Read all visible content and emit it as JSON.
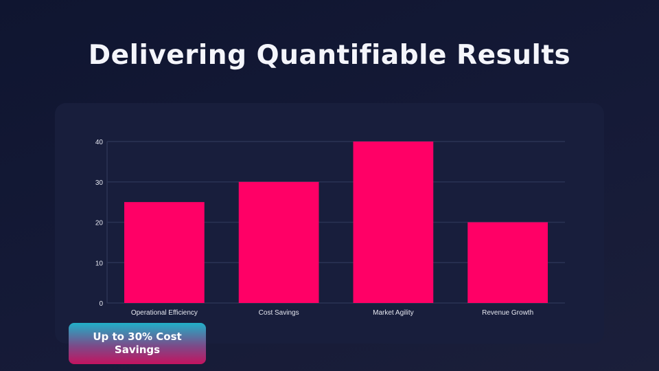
{
  "title": "Delivering Quantifiable Results",
  "badge": {
    "label": "Up to 30% Cost Savings"
  },
  "colors": {
    "bar": "#ff0066",
    "grid": "#2a3354",
    "tick_text": "#e6e8f0"
  },
  "chart_data": {
    "type": "bar",
    "categories": [
      "Operational Efficiency",
      "Cost Savings",
      "Market Agility",
      "Revenue Growth"
    ],
    "values": [
      25,
      30,
      40,
      20
    ],
    "ylim": [
      0,
      40
    ],
    "yticks": [
      0,
      10,
      20,
      30,
      40
    ],
    "grid": true,
    "title": "",
    "xlabel": "",
    "ylabel": ""
  }
}
